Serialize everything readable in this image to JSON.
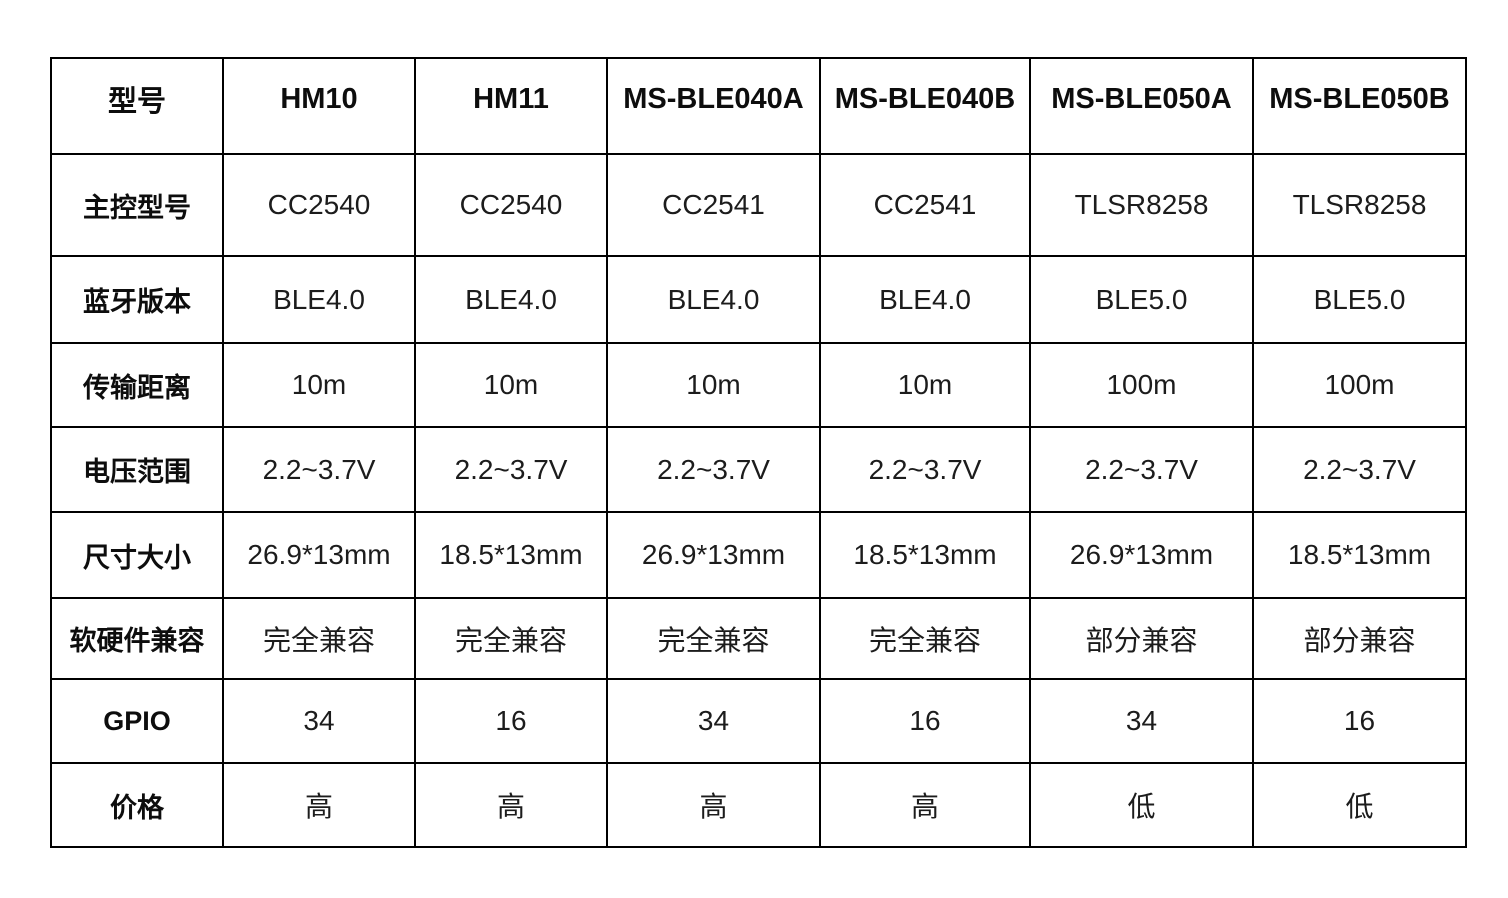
{
  "table": {
    "title_column_header": "型号",
    "columns": [
      "型号",
      "HM10",
      "HM11",
      "MS-BLE040A",
      "MS-BLE040B",
      "MS-BLE050A",
      "MS-BLE050B"
    ],
    "rows": [
      {
        "label": "主控型号",
        "values": [
          "CC2540",
          "CC2540",
          "CC2541",
          "CC2541",
          "TLSR8258",
          "TLSR8258"
        ]
      },
      {
        "label": "蓝牙版本",
        "values": [
          "BLE4.0",
          "BLE4.0",
          "BLE4.0",
          "BLE4.0",
          "BLE5.0",
          "BLE5.0"
        ]
      },
      {
        "label": "传输距离",
        "values": [
          "10m",
          "10m",
          "10m",
          "10m",
          "100m",
          "100m"
        ]
      },
      {
        "label": "电压范围",
        "values": [
          "2.2~3.7V",
          "2.2~3.7V",
          "2.2~3.7V",
          "2.2~3.7V",
          "2.2~3.7V",
          "2.2~3.7V"
        ]
      },
      {
        "label": "尺寸大小",
        "values": [
          "26.9*13mm",
          "18.5*13mm",
          "26.9*13mm",
          "18.5*13mm",
          "26.9*13mm",
          "18.5*13mm"
        ]
      },
      {
        "label": "软硬件兼容",
        "values": [
          "完全兼容",
          "完全兼容",
          "完全兼容",
          "完全兼容",
          "部分兼容",
          "部分兼容"
        ]
      },
      {
        "label": "GPIO",
        "values": [
          "34",
          "16",
          "34",
          "16",
          "34",
          "16"
        ]
      },
      {
        "label": "价格",
        "values": [
          "高",
          "高",
          "高",
          "高",
          "低",
          "低"
        ]
      }
    ]
  },
  "colors": {
    "border": "#000000",
    "text": "#1c1c1c",
    "background": "#ffffff"
  }
}
